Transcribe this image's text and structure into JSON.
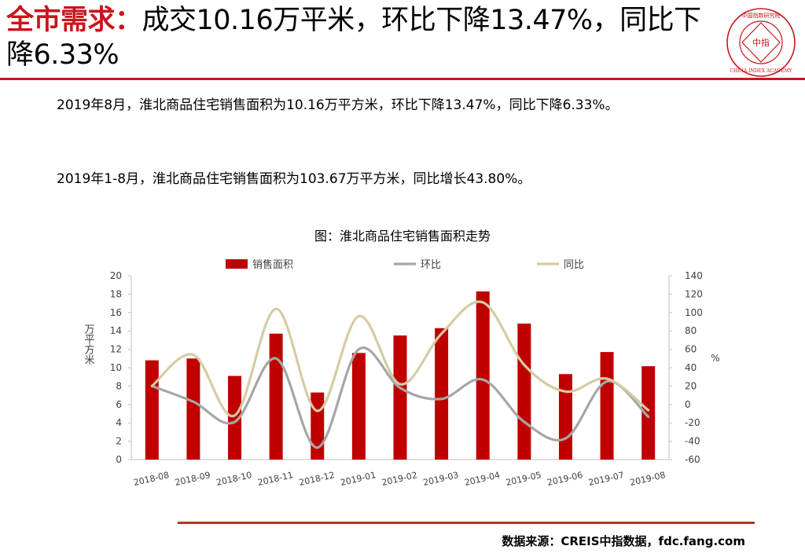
{
  "header": {
    "title_highlight": "全市需求：",
    "title_rest": "成交10.16万平米，环比下降13.47%，同比下降6.33%",
    "logo_text": "中指",
    "logo_ring_text": "CHINA INDEX ACADEMY",
    "logo_top_text": "中国指数研究院"
  },
  "body": {
    "paragraph1": "2019年8月，淮北商品住宅销售面积为10.16万平方米，环比下降13.47%，同比下降6.33%。",
    "paragraph2": "2019年1-8月，淮北商品住宅销售面积为103.67万平方米，同比增长43.80%。"
  },
  "chart_caption": "图：淮北商品住宅销售面积走势",
  "chart_data": {
    "type": "bar",
    "categories": [
      "2018-08",
      "2018-09",
      "2018-10",
      "2018-11",
      "2018-12",
      "2019-01",
      "2019-02",
      "2019-03",
      "2019-04",
      "2019-05",
      "2019-06",
      "2019-07",
      "2019-08"
    ],
    "series": [
      {
        "name": "销售面积",
        "type": "bar",
        "axis": "left",
        "color": "#c00000",
        "values": [
          10.8,
          11.0,
          9.1,
          13.7,
          7.3,
          11.6,
          13.5,
          14.3,
          18.3,
          14.8,
          9.3,
          11.7,
          10.16
        ]
      },
      {
        "name": "环比",
        "type": "line",
        "axis": "right",
        "color": "#a6a6a6",
        "values": [
          20,
          3,
          -19,
          50,
          -47,
          60,
          18,
          6,
          27,
          -19,
          -37,
          25,
          -13.47
        ]
      },
      {
        "name": "同比",
        "type": "line",
        "axis": "right",
        "color": "#d7cba4",
        "values": [
          20,
          54,
          -12,
          104,
          -7,
          96,
          22,
          77,
          111,
          43,
          14,
          28,
          -6.33
        ]
      }
    ],
    "ylabel": "万平方米",
    "ylim": [
      0,
      20
    ],
    "yticks": [
      0,
      2,
      4,
      6,
      8,
      10,
      12,
      14,
      16,
      18,
      20
    ],
    "y2label": "%",
    "y2lim": [
      -60,
      140
    ],
    "y2ticks": [
      -60,
      -40,
      -20,
      0,
      20,
      40,
      60,
      80,
      100,
      120,
      140
    ],
    "legend": "top",
    "grid": false
  },
  "footer": {
    "source": "数据来源：CREIS中指数据，fdc.fang.com"
  }
}
